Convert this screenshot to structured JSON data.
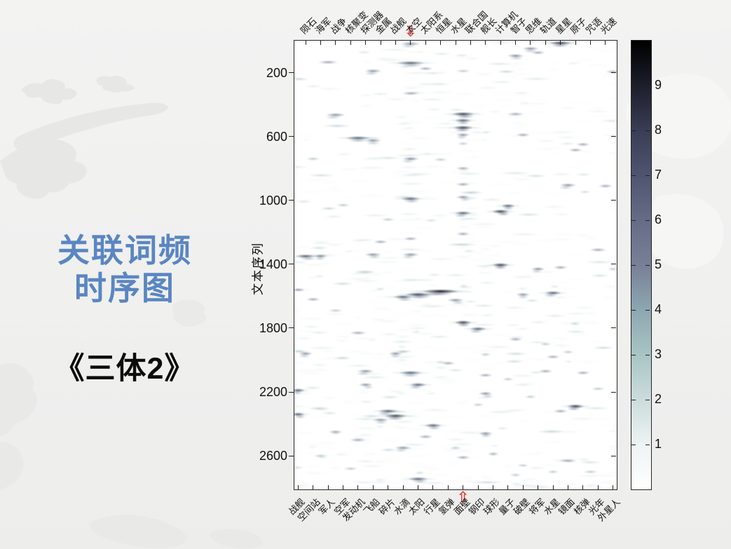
{
  "slide": {
    "title_line1": "关联词频",
    "title_line2": "时序图",
    "book_title": "《三体2》",
    "title_color": "#5a86c2",
    "book_title_color": "#0c0c0c",
    "background_color": "#f0f0ef"
  },
  "chart_data": {
    "type": "heatmap",
    "ylabel": "文本序列",
    "y_ticks": [
      200,
      600,
      1000,
      1400,
      1800,
      2200,
      2600
    ],
    "y_range": [
      0,
      2810
    ],
    "columns": 43,
    "x_labels_top": [
      "陨石",
      "海军",
      "战争",
      "核聚变",
      "探测器",
      "金属",
      "战舰",
      "太空",
      "太阳系",
      "恒星",
      "水星",
      "联合国",
      "舰长",
      "计算机",
      "智子",
      "思维",
      "轨道",
      "星星",
      "原子",
      "咒语",
      "光速"
    ],
    "x_labels_bottom": [
      "战舰",
      "空间站",
      "军人",
      "空军",
      "发动机",
      "飞船",
      "碎片",
      "水滴",
      "太阳",
      "行星",
      "氢弹",
      "面壁",
      "钢印",
      "球形",
      "量子",
      "破壁",
      "将军",
      "水星",
      "镜面",
      "核弹",
      "光年",
      "外星人"
    ],
    "highlight": {
      "top_word": "太空",
      "bottom_word": "面壁",
      "arrow_color": "#d6413c",
      "top_glyph": "⇩",
      "bottom_glyph": "⇧"
    },
    "colorbar": {
      "ticks": [
        1,
        2,
        3,
        4,
        5,
        6,
        7,
        8,
        9
      ],
      "range": [
        0,
        10
      ]
    },
    "colormap_stops": [
      [
        0,
        [
          255,
          255,
          255
        ]
      ],
      [
        0.1,
        [
          238,
          243,
          243
        ]
      ],
      [
        0.2,
        [
          204,
          220,
          220
        ]
      ],
      [
        0.3,
        [
          169,
          196,
          196
        ]
      ],
      [
        0.4,
        [
          141,
          167,
          176
        ]
      ],
      [
        0.5,
        [
          120,
          127,
          151
        ]
      ],
      [
        0.6,
        [
          102,
          108,
          134
        ]
      ],
      [
        0.7,
        [
          79,
          84,
          112
        ]
      ],
      [
        0.8,
        [
          58,
          61,
          85
        ]
      ],
      [
        0.9,
        [
          28,
          30,
          42
        ]
      ],
      [
        1,
        [
          0,
          0,
          0
        ]
      ]
    ],
    "hotspots": [
      [
        15,
        20,
        6,
        14
      ],
      [
        35,
        15,
        8,
        16
      ],
      [
        31,
        50,
        6,
        12
      ],
      [
        15,
        140,
        7,
        20
      ],
      [
        4,
        135,
        5,
        14
      ],
      [
        10,
        190,
        6,
        12
      ],
      [
        29,
        95,
        6,
        12
      ],
      [
        32,
        75,
        5,
        10
      ],
      [
        17,
        175,
        5,
        10
      ],
      [
        22,
        190,
        4,
        10
      ],
      [
        42,
        195,
        5,
        10
      ],
      [
        15,
        330,
        5,
        12
      ],
      [
        5,
        465,
        6,
        14
      ],
      [
        22,
        460,
        8,
        16
      ],
      [
        22,
        500,
        7,
        12
      ],
      [
        22,
        545,
        8,
        14
      ],
      [
        22,
        590,
        6,
        10
      ],
      [
        29,
        460,
        5,
        12
      ],
      [
        8,
        610,
        7,
        18
      ],
      [
        10,
        625,
        6,
        12
      ],
      [
        30,
        590,
        5,
        10
      ],
      [
        38,
        650,
        5,
        10
      ],
      [
        15,
        740,
        6,
        12
      ],
      [
        19,
        745,
        4,
        10
      ],
      [
        22,
        645,
        4,
        8
      ],
      [
        22,
        800,
        5,
        10
      ],
      [
        22,
        900,
        5,
        10
      ],
      [
        22,
        980,
        6,
        10
      ],
      [
        22,
        1080,
        7,
        12
      ],
      [
        15,
        990,
        7,
        14
      ],
      [
        28,
        1035,
        7,
        10
      ],
      [
        27,
        1070,
        8,
        12
      ],
      [
        36,
        905,
        6,
        12
      ],
      [
        37,
        685,
        5,
        10
      ],
      [
        1,
        1350,
        7,
        14
      ],
      [
        11,
        1260,
        5,
        10
      ],
      [
        15,
        1240,
        5,
        10
      ],
      [
        22,
        1210,
        5,
        10
      ],
      [
        15,
        1340,
        6,
        12
      ],
      [
        10,
        1340,
        6,
        12
      ],
      [
        3,
        1350,
        6,
        10
      ],
      [
        35,
        1420,
        5,
        10
      ],
      [
        27,
        1405,
        8,
        12
      ],
      [
        32,
        1430,
        6,
        10
      ],
      [
        19,
        1570,
        9,
        26
      ],
      [
        16,
        1590,
        8,
        18
      ],
      [
        14,
        1605,
        7,
        14
      ],
      [
        21,
        1625,
        6,
        12
      ],
      [
        30,
        1590,
        6,
        10
      ],
      [
        34,
        1580,
        7,
        12
      ],
      [
        22,
        1765,
        8,
        12
      ],
      [
        24,
        1805,
        7,
        12
      ],
      [
        1,
        1960,
        6,
        10
      ],
      [
        13,
        1960,
        6,
        10
      ],
      [
        25,
        1965,
        4,
        8
      ],
      [
        34,
        1980,
        5,
        10
      ],
      [
        9,
        2070,
        6,
        12
      ],
      [
        15,
        2080,
        7,
        16
      ],
      [
        25,
        2095,
        5,
        10
      ],
      [
        33,
        2070,
        5,
        10
      ],
      [
        38,
        2080,
        5,
        10
      ],
      [
        9,
        2155,
        6,
        10
      ],
      [
        16,
        2155,
        7,
        12
      ],
      [
        0,
        2190,
        7,
        10
      ],
      [
        25,
        2210,
        6,
        10
      ],
      [
        37,
        2290,
        8,
        12
      ],
      [
        12,
        2320,
        7,
        14
      ],
      [
        13,
        2350,
        8,
        16
      ],
      [
        11,
        2375,
        6,
        12
      ],
      [
        18,
        2410,
        7,
        12
      ],
      [
        0,
        2340,
        7,
        10
      ],
      [
        25,
        2460,
        6,
        10
      ],
      [
        14,
        2550,
        6,
        12
      ],
      [
        22,
        2610,
        5,
        10
      ],
      [
        16,
        2745,
        7,
        14
      ],
      [
        29,
        2720,
        4,
        8
      ],
      [
        5,
        2450,
        5,
        10
      ],
      [
        8,
        2500,
        5,
        12
      ],
      [
        3,
        2600,
        4,
        10
      ],
      [
        7,
        2680,
        4,
        10
      ],
      [
        35,
        2320,
        5,
        10
      ],
      [
        40,
        2180,
        4,
        10
      ],
      [
        41,
        910,
        5,
        10
      ],
      [
        36,
        2630,
        5,
        12
      ],
      [
        39,
        2700,
        4,
        10
      ],
      [
        2,
        740,
        4,
        10
      ],
      [
        6,
        1030,
        4,
        10
      ],
      [
        12,
        1120,
        4,
        10
      ],
      [
        40,
        1310,
        5,
        12
      ],
      [
        42,
        1430,
        4,
        8
      ],
      [
        0,
        1560,
        5,
        10
      ],
      [
        2,
        1620,
        5,
        10
      ],
      [
        5,
        1690,
        4,
        10
      ],
      [
        8,
        1830,
        5,
        12
      ],
      [
        29,
        1870,
        5,
        10
      ],
      [
        33,
        1900,
        4,
        8
      ],
      [
        36,
        1950,
        4,
        8
      ],
      [
        20,
        2020,
        5,
        10
      ],
      [
        28,
        2120,
        4,
        8
      ],
      [
        31,
        2230,
        4,
        8
      ],
      [
        24,
        2280,
        4,
        8
      ],
      [
        17,
        2480,
        5,
        10
      ],
      [
        21,
        2550,
        4,
        8
      ],
      [
        26,
        2590,
        4,
        8
      ],
      [
        30,
        2660,
        4,
        8
      ],
      [
        34,
        2700,
        4,
        8
      ]
    ],
    "noise": {
      "seed": 42,
      "count": 620,
      "col_weights": [
        5,
        3,
        4,
        4,
        3,
        4,
        2,
        2,
        4,
        4,
        6,
        3,
        5,
        5,
        6,
        10,
        8,
        4,
        5,
        5,
        3,
        2,
        9,
        5,
        3,
        6,
        2,
        3,
        4,
        5,
        4,
        3,
        4,
        3,
        4,
        5,
        3,
        3,
        4,
        2,
        3,
        2,
        4
      ]
    }
  }
}
